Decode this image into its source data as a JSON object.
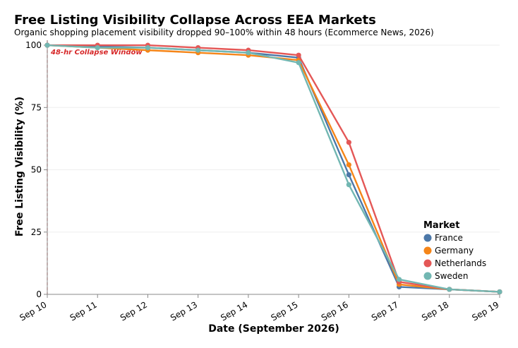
{
  "chart_data": {
    "type": "line",
    "title": "Free Listing Visibility Collapse Across EEA Markets",
    "subtitle": "Organic shopping placement visibility dropped 90–100% within 48 hours (Ecommerce News, 2026)",
    "xlabel": "Date (September 2026)",
    "ylabel": "Free Listing Visibility (%)",
    "categories": [
      "Sep 10",
      "Sep 11",
      "Sep 12",
      "Sep 13",
      "Sep 14",
      "Sep 15",
      "Sep 16",
      "Sep 17",
      "Sep 18",
      "Sep 19"
    ],
    "ylim": [
      0,
      102
    ],
    "yticks": [
      0,
      25,
      50,
      75,
      100
    ],
    "grid": true,
    "legend": {
      "title": "Market",
      "position": "bottom-right"
    },
    "annotation": {
      "text": "48-hr Collapse Window",
      "x": "Sep 10",
      "color": "#d62728"
    },
    "series": [
      {
        "name": "France",
        "color": "#4c78a8",
        "values": [
          100,
          99.5,
          99,
          98,
          97,
          95,
          48,
          3,
          2,
          1
        ]
      },
      {
        "name": "Germany",
        "color": "#f58518",
        "values": [
          100,
          99,
          98,
          97,
          96,
          94,
          52,
          4,
          2,
          1
        ]
      },
      {
        "name": "Netherlands",
        "color": "#e45756",
        "values": [
          100,
          100,
          100,
          99,
          98,
          96,
          61,
          5,
          2,
          1
        ]
      },
      {
        "name": "Sweden",
        "color": "#72b7b2",
        "values": [
          100,
          99,
          99,
          98,
          97,
          93,
          44,
          6,
          2,
          1
        ]
      }
    ]
  }
}
